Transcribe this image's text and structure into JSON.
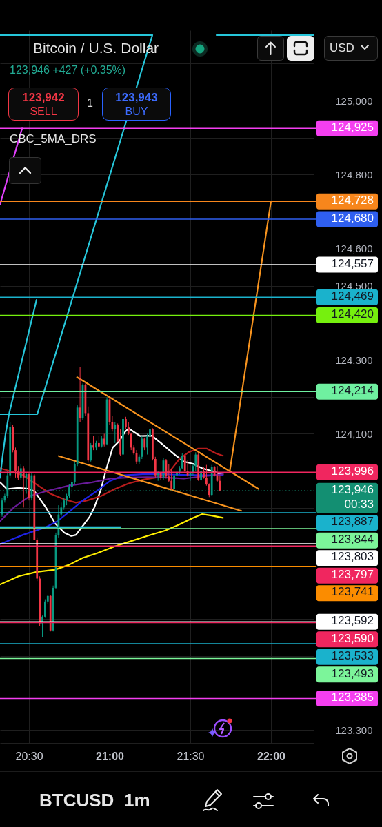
{
  "chart_data": {
    "type": "candlestick",
    "title": "Bitcoin / U.S. Dollar",
    "subtitle": "123,946 +427 (+0.35%)",
    "annotations": [
      "123,942",
      "SELL",
      "1",
      "123,943",
      "BUY",
      "CBC_5MA_DRS",
      "USD",
      "BTCUSD",
      "1m"
    ],
    "x": [
      20.3333,
      20.35,
      20.3667,
      20.3833,
      20.4,
      20.4167,
      20.4333,
      20.45,
      20.4667,
      20.4833,
      20.5,
      20.5167,
      20.5333,
      20.55,
      20.5667,
      20.5833,
      20.6,
      20.6167,
      20.6333,
      20.65,
      20.6667,
      20.6833,
      20.7,
      20.7167,
      20.7333,
      20.75,
      20.7667,
      20.7833,
      20.8,
      20.8167,
      20.8333,
      20.85,
      20.8667,
      20.8833,
      20.9,
      20.9167,
      20.9333,
      20.95,
      20.9667,
      20.9833,
      21,
      21.0167,
      21.0333,
      21.05,
      21.0667,
      21.0833,
      21.1,
      21.1167,
      21.1333,
      21.15,
      21.1667,
      21.1833,
      21.2,
      21.2167,
      21.2333,
      21.25,
      21.2667,
      21.2833,
      21.3,
      21.3167,
      21.3333,
      21.35,
      21.3667,
      21.3833,
      21.4,
      21.4167,
      21.4333,
      21.45,
      21.4667,
      21.4833,
      21.5,
      21.5167,
      21.5333,
      21.55,
      21.5667,
      21.5833,
      21.6,
      21.6167,
      21.6333,
      21.65,
      21.6667,
      21.6833
    ],
    "ohlc": [
      [
        123882,
        123926,
        123876,
        123920
      ],
      [
        123920,
        123938,
        123914,
        123932
      ],
      [
        123932,
        124000,
        123926,
        123988
      ],
      [
        123988,
        124131,
        123982,
        124118
      ],
      [
        124118,
        124125,
        124050,
        124056
      ],
      [
        124056,
        124063,
        123982,
        124000
      ],
      [
        124000,
        124013,
        123976,
        123982
      ],
      [
        123982,
        124019,
        123976,
        124007
      ],
      [
        124007,
        124013,
        123901,
        123982
      ],
      [
        123982,
        123994,
        123938,
        123991
      ],
      [
        123991,
        123994,
        123920,
        123926
      ],
      [
        123926,
        123994,
        123920,
        123988
      ],
      [
        123988,
        123991,
        123814,
        123814
      ],
      [
        123814,
        123820,
        123702,
        123709
      ],
      [
        123709,
        123715,
        123581,
        123588
      ],
      [
        123588,
        123609,
        123550,
        123606
      ],
      [
        123606,
        123653,
        123603,
        123647
      ],
      [
        123647,
        123665,
        123640,
        123662
      ],
      [
        123662,
        123665,
        123566,
        123569
      ],
      [
        123569,
        123690,
        123566,
        123684
      ],
      [
        123684,
        123833,
        123681,
        123827
      ],
      [
        123827,
        123907,
        123820,
        123882
      ],
      [
        123882,
        123914,
        123876,
        123901
      ],
      [
        123901,
        123926,
        123895,
        123920
      ],
      [
        123920,
        123938,
        123907,
        123932
      ],
      [
        123932,
        123963,
        123926,
        123957
      ],
      [
        123957,
        123976,
        123938,
        123969
      ],
      [
        123969,
        124025,
        123963,
        124019
      ],
      [
        124019,
        124177,
        124013,
        124171
      ],
      [
        124171,
        124280,
        124131,
        124143
      ],
      [
        124143,
        124236,
        124137,
        124233
      ],
      [
        124233,
        124236,
        124149,
        124156
      ],
      [
        124156,
        124174,
        124022,
        124028
      ],
      [
        124028,
        124075,
        124025,
        124069
      ],
      [
        124069,
        124094,
        124056,
        124063
      ],
      [
        124063,
        124081,
        124056,
        124075
      ],
      [
        124075,
        124094,
        124063,
        124066
      ],
      [
        124066,
        124094,
        124063,
        124087
      ],
      [
        124087,
        124100,
        124066,
        124072
      ],
      [
        124072,
        124199,
        124069,
        124193
      ],
      [
        124193,
        124196,
        124125,
        124131
      ],
      [
        124131,
        124149,
        124106,
        124112
      ],
      [
        124112,
        124131,
        124075,
        124125
      ],
      [
        124125,
        124128,
        124078,
        124081
      ],
      [
        124081,
        124112,
        124041,
        124044
      ],
      [
        124044,
        124146,
        124038,
        124140
      ],
      [
        124140,
        124146,
        124112,
        124118
      ],
      [
        124118,
        124131,
        124097,
        124100
      ],
      [
        124100,
        124103,
        124056,
        124063
      ],
      [
        124063,
        124069,
        124044,
        124047
      ],
      [
        124047,
        124056,
        124019,
        124025
      ],
      [
        124025,
        124044,
        124019,
        124038
      ],
      [
        124038,
        124094,
        124032,
        124087
      ],
      [
        124087,
        124090,
        124056,
        124063
      ],
      [
        124063,
        124100,
        124044,
        124094
      ],
      [
        124094,
        124115,
        124087,
        124112
      ],
      [
        124112,
        124115,
        124028,
        124032
      ],
      [
        124032,
        124038,
        123982,
        123988
      ],
      [
        123988,
        124000,
        123973,
        123994
      ],
      [
        123994,
        123997,
        123976,
        123982
      ],
      [
        123982,
        124035,
        123976,
        124028
      ],
      [
        124028,
        124032,
        123979,
        123985
      ],
      [
        123985,
        124019,
        123969,
        123973
      ],
      [
        123973,
        124004,
        123948,
        123951
      ],
      [
        123951,
        123991,
        123945,
        123988
      ],
      [
        123988,
        124000,
        123982,
        123997
      ],
      [
        123997,
        124013,
        123991,
        124007
      ],
      [
        124007,
        124047,
        124004,
        124041
      ],
      [
        124041,
        124044,
        123997,
        124000
      ],
      [
        124000,
        124028,
        123985,
        123988
      ],
      [
        123988,
        123997,
        123973,
        123994
      ],
      [
        123994,
        124019,
        123988,
        124013
      ],
      [
        124013,
        124050,
        124000,
        124044
      ],
      [
        124044,
        124047,
        123973,
        123976
      ],
      [
        123976,
        124007,
        123973,
        124000
      ],
      [
        124000,
        124010,
        123979,
        123982
      ],
      [
        123982,
        124016,
        123960,
        123963
      ],
      [
        123963,
        123966,
        123929,
        123935
      ],
      [
        123935,
        124016,
        123932,
        124010
      ],
      [
        124010,
        124013,
        123985,
        123988
      ],
      [
        123988,
        124013,
        123969,
        123973
      ],
      [
        123973,
        123988,
        123945,
        123946
      ]
    ],
    "colors": [
      "#089981",
      "#089981",
      "#089981",
      "#089981",
      "#f23645",
      "#f23645",
      "#f23645",
      "#089981",
      "#f23645",
      "#089981",
      "#f23645",
      "#089981",
      "#f23645",
      "#f23645",
      "#f23645",
      "#089981",
      "#089981",
      "#089981",
      "#f23645",
      "#089981",
      "#089981",
      "#089981",
      "#089981",
      "#089981",
      "#089981",
      "#089981",
      "#089981",
      "#089981",
      "#089981",
      "#f23645",
      "#089981",
      "#f23645",
      "#f23645",
      "#089981",
      "#f23645",
      "#089981",
      "#f23645",
      "#089981",
      "#f23645",
      "#089981",
      "#f23645",
      "#f23645",
      "#089981",
      "#f23645",
      "#f23645",
      "#089981",
      "#f23645",
      "#f23645",
      "#f23645",
      "#f23645",
      "#f23645",
      "#089981",
      "#089981",
      "#f23645",
      "#089981",
      "#089981",
      "#f23645",
      "#f23645",
      "#089981",
      "#f23645",
      "#089981",
      "#f23645",
      "#f23645",
      "#f23645",
      "#089981",
      "#089981",
      "#089981",
      "#089981",
      "#f23645",
      "#f23645",
      "#089981",
      "#089981",
      "#089981",
      "#f23645",
      "#089981",
      "#f23645",
      "#f23645",
      "#f23645",
      "#089981",
      "#f23645",
      "#f23645",
      "#f23645"
    ],
    "series": [
      {
        "type": "line",
        "color": "#ffffff",
        "x": [
          20.321,
          20.363,
          20.435,
          20.492,
          20.534,
          20.605,
          20.662,
          20.719,
          20.762,
          20.791,
          20.833,
          20.876,
          20.905,
          20.947,
          20.976,
          21.019,
          21.061,
          21.097,
          21.118,
          21.147,
          21.19,
          21.261,
          21.318,
          21.403,
          21.46,
          21.517,
          21.574,
          21.631,
          21.688,
          21.702
        ],
        "values": [
          123969,
          123951,
          123954,
          123952,
          123945,
          123901,
          123858,
          123833,
          123824,
          123827,
          123851,
          123876,
          123901,
          123951,
          124000,
          124063,
          124081,
          124106,
          124115,
          124106,
          124094,
          124095,
          124075,
          124044,
          124025,
          124019,
          124007,
          124000,
          123991,
          123991
        ]
      },
      {
        "type": "line",
        "color": "#ffee00",
        "x": [
          20.321,
          20.435,
          20.548,
          20.662,
          20.748,
          20.833,
          20.919,
          21.033,
          21.118,
          21.232,
          21.346,
          21.432,
          21.517,
          21.574,
          21.631,
          21.702
        ],
        "values": [
          123693,
          123715,
          123727,
          123733,
          123746,
          123765,
          123777,
          123796,
          123808,
          123824,
          123839,
          123855,
          123873,
          123883,
          123879,
          123873
        ]
      },
      {
        "type": "line",
        "color": "#b71c1c",
        "x": [
          20.321,
          20.378,
          20.463,
          20.548,
          20.634,
          20.719,
          20.791,
          20.862,
          20.947,
          21.033,
          21.118,
          21.204,
          21.289,
          21.375,
          21.432,
          21.489,
          21.546,
          21.603,
          21.66,
          21.702
        ],
        "values": [
          124007,
          124000,
          123988,
          123963,
          123938,
          123923,
          123914,
          123920,
          123932,
          123951,
          123966,
          123976,
          123982,
          124000,
          124032,
          124050,
          124060,
          124060,
          124047,
          124041
        ]
      },
      {
        "type": "line",
        "color": "#1e22e6",
        "x": [
          20.321,
          20.463,
          20.606,
          20.677,
          20.748,
          20.834,
          20.919,
          21.004,
          21.09,
          21.204,
          21.318,
          21.46,
          21.603,
          21.702
        ],
        "values": [
          123802,
          123827,
          123848,
          123864,
          123889,
          123920,
          123945,
          123973,
          123988,
          123991,
          123991,
          123989,
          123988,
          123988
        ]
      },
      {
        "type": "line",
        "color": "#6a1b9a",
        "x": [
          20.321,
          20.406,
          20.506,
          20.606,
          20.748,
          20.891,
          21.004,
          21.118,
          21.232,
          21.346,
          21.46,
          21.574,
          21.702
        ],
        "values": [
          123864,
          123901,
          123932,
          123945,
          123960,
          123969,
          123979,
          123982,
          123983,
          123982,
          123979,
          123985,
          123991
        ]
      },
      {
        "type": "line",
        "color": "#f7931e",
        "x": [
          20.798,
          21.923
        ],
        "values": [
          124253,
          123951
        ]
      },
      {
        "type": "line",
        "color": "#f7931e",
        "x": [
          20.684,
          21.816
        ],
        "values": [
          124040,
          123892
        ]
      },
      {
        "type": "line",
        "color": "#f7931e",
        "x": [
          21.745,
          22.0
        ],
        "values": [
          124000,
          124728
        ]
      },
      {
        "type": "line",
        "color": "#26c6da",
        "x": [
          20.3205,
          20.3376,
          20.3547,
          20.3718,
          20.3761,
          20.547
        ],
        "values": [
          123981,
          124043,
          124099,
          124142,
          124153,
          124462
        ]
      },
      {
        "type": "line",
        "color": "#26c6da",
        "x": [
          20.3205,
          20.5513,
          21.265,
          20.3205
        ],
        "values": [
          124153,
          124153,
          125177,
          125177
        ]
      },
      {
        "type": "line",
        "color": "#26c6da",
        "x": [
          21.6624,
          22.265
        ],
        "values": [
          125177,
          125177
        ]
      },
      {
        "type": "line",
        "color": "#26c6da",
        "x": [
          20.3205,
          21.0684
        ],
        "values": [
          123848,
          123848
        ]
      },
      {
        "type": "line",
        "color": "#e040fb",
        "x": [
          20.3205,
          20.4573
        ],
        "values": [
          124719,
          124925
        ]
      }
    ],
    "ref_lines": [
      {
        "axis": "y",
        "value": 124925,
        "label": "124,925",
        "color": "#f43ff0"
      },
      {
        "axis": "y",
        "value": 124728,
        "label": "124,728",
        "color": "#f7861c"
      },
      {
        "axis": "y",
        "value": 124680,
        "label": "124,680",
        "color": "#2f5ff0"
      },
      {
        "axis": "y",
        "value": 124557,
        "label": "124,557",
        "color": "#ffffff"
      },
      {
        "axis": "y",
        "value": 124469,
        "label": "124,469",
        "color": "#1ab2cc"
      },
      {
        "axis": "y",
        "value": 124420,
        "label": "124,420",
        "color": "#76f00e"
      },
      {
        "axis": "y",
        "value": 124214,
        "label": "124,214",
        "color": "#6ff0a0"
      },
      {
        "axis": "y",
        "value": 123996,
        "label": "123,996",
        "color": "#f0265f"
      },
      {
        "axis": "y",
        "value": 123946,
        "label": "123,946\n00:33",
        "color": "#138f72",
        "line_style": "dotted"
      },
      {
        "axis": "y",
        "value": 123887,
        "label": "123,887",
        "color": "#1ab2cc"
      },
      {
        "axis": "y",
        "value": 123844,
        "label": "123,844",
        "color": "#7cf59a"
      },
      {
        "axis": "y",
        "value": 123803,
        "label": "123,803",
        "color": "#ffffff"
      },
      {
        "axis": "y",
        "value": 123797,
        "label": "123,797",
        "color": "#f0265f"
      },
      {
        "axis": "y",
        "value": 123741,
        "label": "123,741",
        "color": "#fb8c00"
      },
      {
        "axis": "y",
        "value": 123592,
        "label": "123,592",
        "color": "#ffffff"
      },
      {
        "axis": "y",
        "value": 123590,
        "label": "123,590",
        "color": "#f0265f"
      },
      {
        "axis": "y",
        "value": 123533,
        "label": "123,533",
        "color": "#1ab2cc"
      },
      {
        "axis": "y",
        "value": 123493,
        "label": "123,493",
        "color": "#7cf59a"
      },
      {
        "axis": "y",
        "value": 123385,
        "label": "123,385",
        "color": "#f43ff0"
      }
    ],
    "xlim": [
      20.3205,
      22.265
    ],
    "xticks": [
      {
        "value": 20.5,
        "label": "20:30"
      },
      {
        "value": 21,
        "label": "21:00"
      },
      {
        "value": 21.5,
        "label": "21:30"
      },
      {
        "value": 22,
        "label": "22:00"
      }
    ],
    "ylim": [
      123265,
      125190
    ],
    "yticks": [
      {
        "value": 123300,
        "label": "123,300"
      },
      {
        "value": 123400,
        "label": null
      },
      {
        "value": 123500,
        "label": null
      },
      {
        "value": 123600,
        "label": null
      },
      {
        "value": 123700,
        "label": null
      },
      {
        "value": 123900,
        "label": null
      },
      {
        "value": 124100,
        "label": "124,100"
      },
      {
        "value": 124200,
        "label": null
      },
      {
        "value": 124300,
        "label": "124,300"
      },
      {
        "value": 124400,
        "label": null
      },
      {
        "value": 124500,
        "label": "124,500"
      },
      {
        "value": 124600,
        "label": "124,600"
      },
      {
        "value": 124700,
        "label": null
      },
      {
        "value": 124800,
        "label": "124,800"
      },
      {
        "value": 124900,
        "label": null
      },
      {
        "value": 125000,
        "label": "125,000"
      },
      {
        "value": 125100,
        "label": null
      }
    ],
    "grid": true
  }
}
